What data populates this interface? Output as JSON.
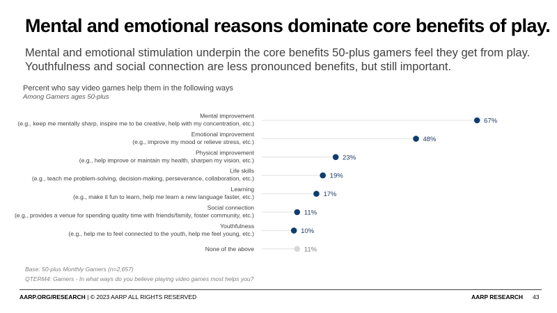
{
  "slide": {
    "title": "Mental and emotional reasons dominate core benefits of play.",
    "subtitle": "Mental and emotional stimulation underpin the core benefits 50-plus gamers feel they get from play.  Youthfulness and social connection are less pronounced benefits, but still important."
  },
  "colors": {
    "marker": "#0f3d6e",
    "marker_muted": "#d9d9d9",
    "label_text": "#404040",
    "value_text": "#1f3864",
    "value_text_muted": "#7f7f7f",
    "gridline": "#d9d9d9"
  },
  "chart_data": {
    "type": "scatter",
    "title": "Percent who say video games help them in the following ways",
    "subtitle": "Among Gamers ages 50-plus",
    "xlim": [
      0,
      70
    ],
    "unit": "%",
    "categories": [
      {
        "name": "Mental improvement",
        "detail": "(e.g., keep me mentally sharp, inspire me to be creative, help with my concentration, etc.)",
        "value": 67,
        "label": "67%",
        "muted": false
      },
      {
        "name": "Emotional improvement",
        "detail": "(e.g., improve my mood or relieve stress, etc.)",
        "value": 48,
        "label": "48%",
        "muted": false
      },
      {
        "name": "Physical improvement",
        "detail": "(e.g., help improve or maintain my health, sharpen my vision, etc.)",
        "value": 23,
        "label": "23%",
        "muted": false
      },
      {
        "name": "Life skills",
        "detail": "(e.g., teach me problem-solving, decision-making, perseverance, collaboration, etc.)",
        "value": 19,
        "label": "19%",
        "muted": false
      },
      {
        "name": "Learning",
        "detail": "(e.g., make it fun to learn, help me learn a new language faster, etc.)",
        "value": 17,
        "label": "17%",
        "muted": false
      },
      {
        "name": "Social connection",
        "detail": "(e.g., provides a venue for spending quality time with friends/family, foster community, etc.)",
        "value": 11,
        "label": "11%",
        "muted": false
      },
      {
        "name": "Youthfulness",
        "detail": "(e.g., help me to feel connected to the youth, help me feel young, etc.)",
        "value": 10,
        "label": "10%",
        "muted": false
      },
      {
        "name": "None of the above",
        "detail": "",
        "value": 11,
        "label": "11%",
        "muted": true
      }
    ]
  },
  "notes": {
    "base": "Base: 50-plus Monthly Gamers (n=2,657)",
    "question": "QTERM4: Gamers - In what ways do you believe playing video games most helps you?"
  },
  "footer": {
    "left_bold": "AARP.ORG/RESEARCH",
    "left_rest": " | © 2023 AARP ALL RIGHTS RESERVED",
    "right": "AARP RESEARCH",
    "page_number": "43"
  }
}
